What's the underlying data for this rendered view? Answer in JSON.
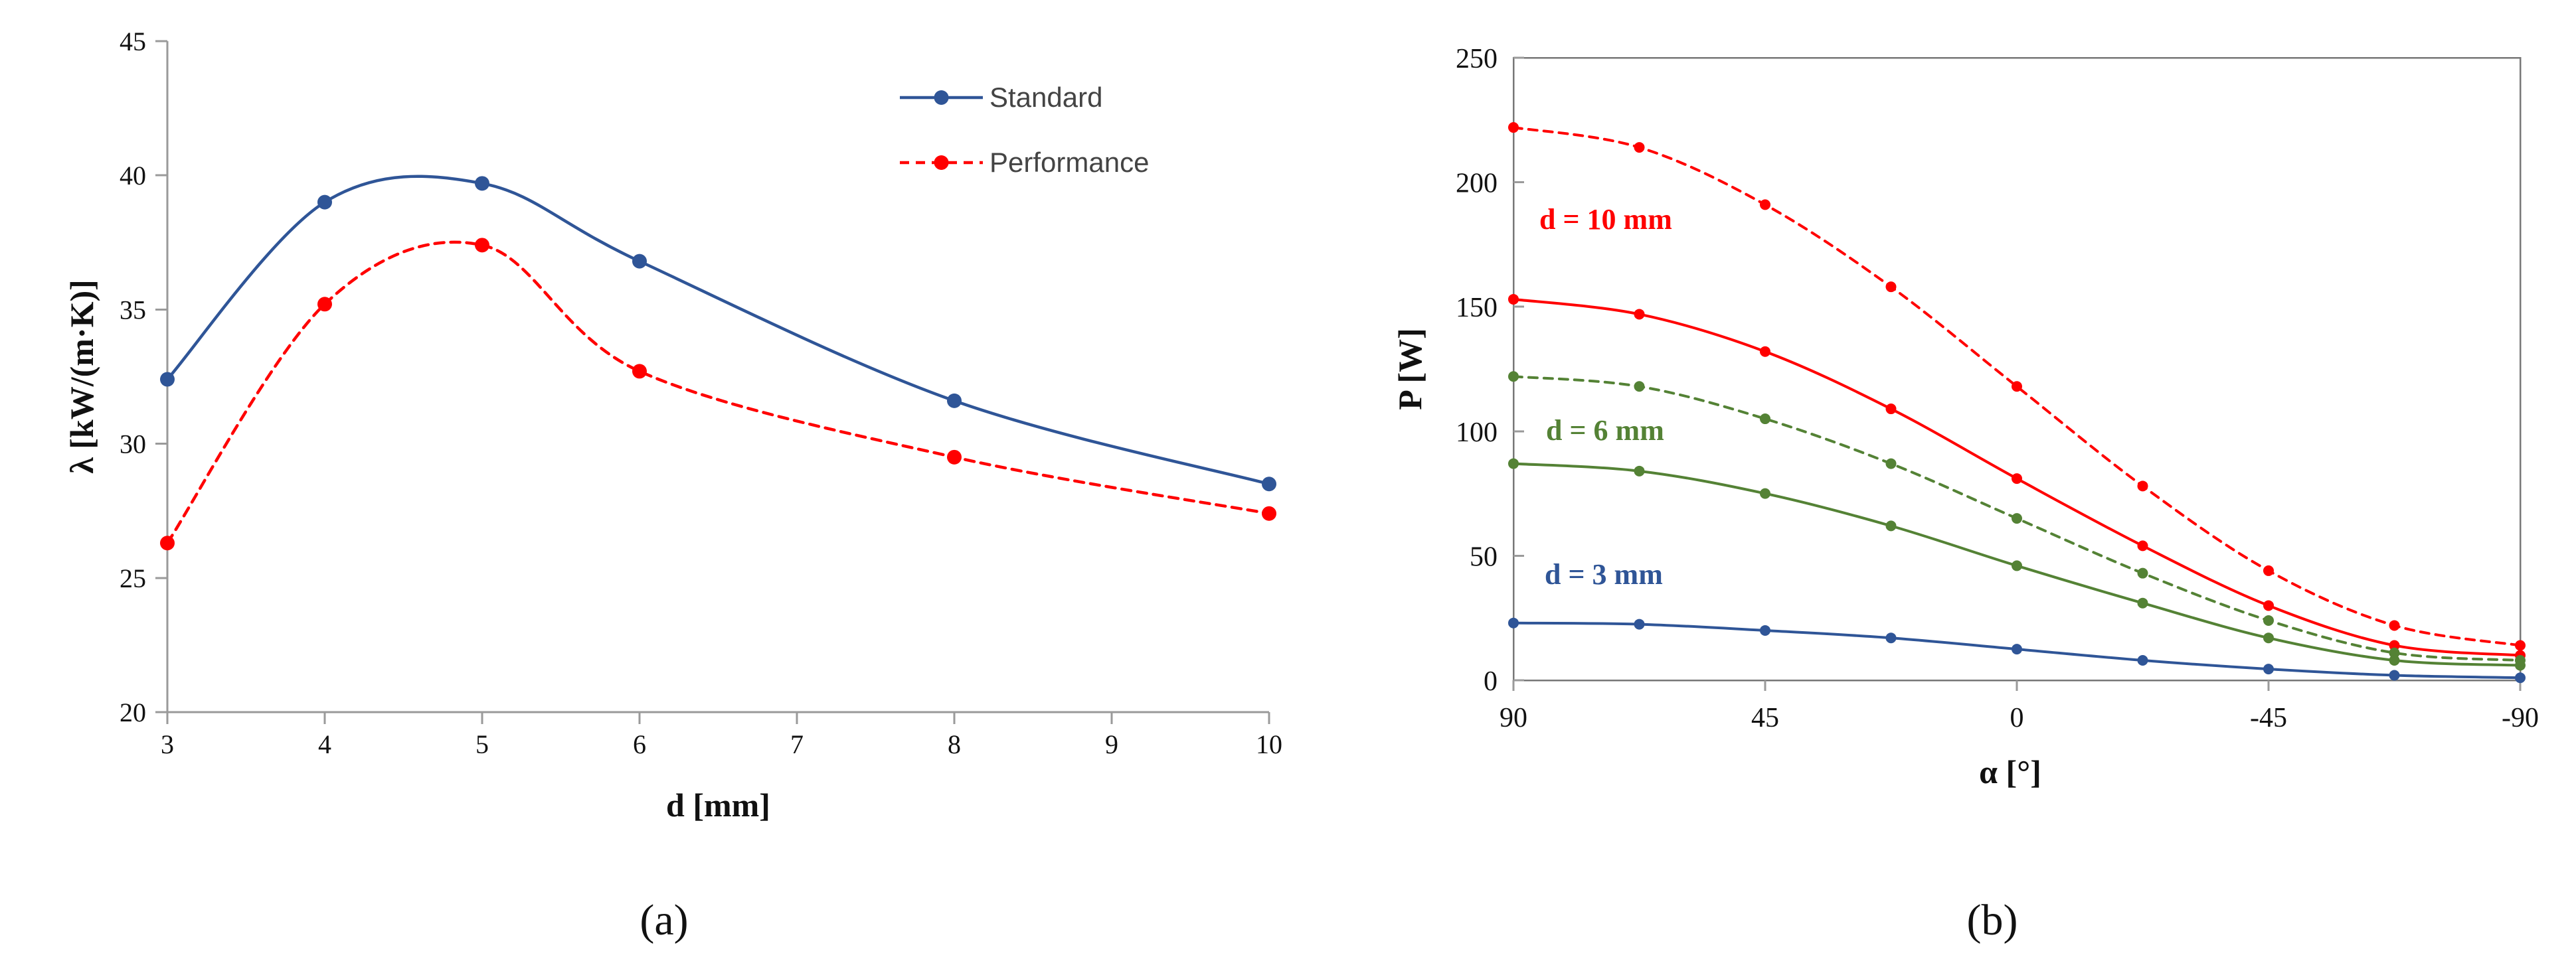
{
  "chart_data": [
    {
      "type": "line",
      "panel_label": "(a)",
      "title": "",
      "xlabel": "d [mm]",
      "ylabel": "λ [kW/(m·K)]",
      "xlim": [
        3,
        10
      ],
      "ylim": [
        20,
        45
      ],
      "xticks": [
        3,
        4,
        5,
        6,
        7,
        8,
        9,
        10
      ],
      "yticks": [
        20,
        25,
        30,
        35,
        40,
        45
      ],
      "legend_position": "top-right",
      "series": [
        {
          "name": "Standard",
          "color": "#2f5597",
          "line_style": "solid",
          "x": [
            3,
            4,
            5,
            6,
            8,
            10
          ],
          "y": [
            32.4,
            39.0,
            39.7,
            36.8,
            31.6,
            28.5
          ]
        },
        {
          "name": "Performance",
          "color": "#ff0000",
          "line_style": "dashed",
          "x": [
            3,
            4,
            5,
            6,
            8,
            10
          ],
          "y": [
            26.3,
            35.2,
            37.4,
            32.7,
            29.5,
            27.4
          ]
        }
      ]
    },
    {
      "type": "line",
      "panel_label": "(b)",
      "title": "",
      "xlabel": "α [°]",
      "ylabel": "P [W]",
      "xlim": [
        90,
        -90
      ],
      "ylim": [
        0,
        250
      ],
      "xticks": [
        90,
        45,
        0,
        -45,
        -90
      ],
      "yticks": [
        0,
        50,
        100,
        150,
        200,
        250
      ],
      "annotations": [
        {
          "text": "d = 10 mm",
          "color": "#ff0000"
        },
        {
          "text": "d = 6 mm",
          "color": "#548235"
        },
        {
          "text": "d = 3 mm",
          "color": "#2f5597"
        }
      ],
      "series": [
        {
          "name": "d = 10 mm (dashed)",
          "color": "#ff0000",
          "line_style": "dashed",
          "x": [
            90,
            67.5,
            45,
            22.5,
            0,
            -22.5,
            -45,
            -67.5,
            -90
          ],
          "y": [
            222,
            214,
            191,
            158,
            118,
            78,
            44,
            22,
            14
          ]
        },
        {
          "name": "d = 10 mm (solid)",
          "color": "#ff0000",
          "line_style": "solid",
          "x": [
            90,
            67.5,
            45,
            22.5,
            0,
            -22.5,
            -45,
            -67.5,
            -90
          ],
          "y": [
            153,
            147,
            132,
            109,
            81,
            54,
            30,
            14,
            10
          ]
        },
        {
          "name": "d = 6 mm (dashed)",
          "color": "#548235",
          "line_style": "dashed",
          "x": [
            90,
            67.5,
            45,
            22.5,
            0,
            -22.5,
            -45,
            -67.5,
            -90
          ],
          "y": [
            122,
            118,
            105,
            87,
            65,
            43,
            24,
            11,
            8
          ]
        },
        {
          "name": "d = 6 mm (solid)",
          "color": "#548235",
          "line_style": "solid",
          "x": [
            90,
            67.5,
            45,
            22.5,
            0,
            -22.5,
            -45,
            -67.5,
            -90
          ],
          "y": [
            87,
            84,
            75,
            62,
            46,
            31,
            17,
            8,
            6
          ]
        },
        {
          "name": "d = 3 mm",
          "color": "#2f5597",
          "line_style": "solid",
          "x": [
            90,
            67.5,
            45,
            22.5,
            0,
            -22.5,
            -45,
            -67.5,
            -90
          ],
          "y": [
            23,
            22.5,
            20,
            17,
            12.5,
            8,
            4.5,
            2,
            1
          ]
        }
      ]
    }
  ]
}
